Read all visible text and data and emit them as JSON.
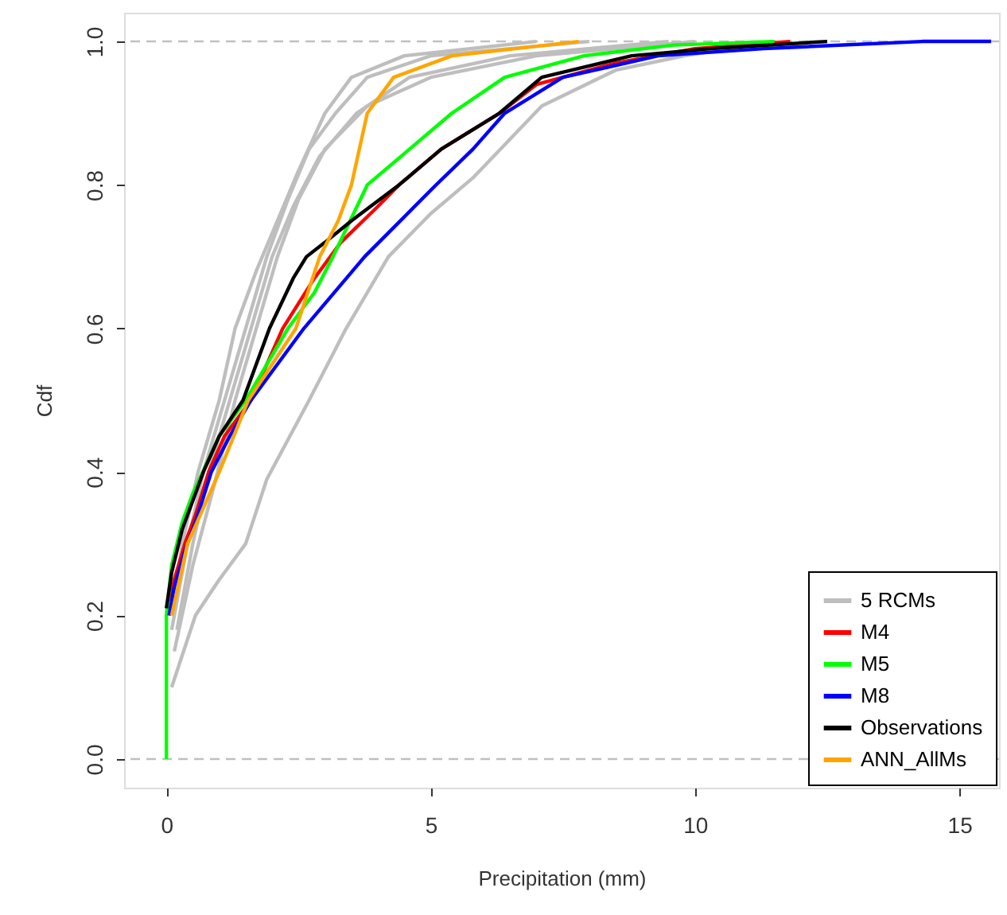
{
  "chart_data": {
    "type": "line",
    "xlabel": "Precipitation (mm)",
    "ylabel": "Cdf",
    "xlim": [
      -0.8,
      15.75
    ],
    "ylim": [
      -0.04,
      1.04
    ],
    "xticks": [
      0,
      5,
      10,
      15
    ],
    "yticks": [
      {
        "value": 0,
        "label": "0.0"
      },
      0.2,
      0.4,
      0.6,
      0.8,
      {
        "value": 1,
        "label": "1.0"
      }
    ],
    "grid": false,
    "legend": "bottom right",
    "line_style": "solid",
    "marker": "none",
    "ref_lines": [
      {
        "axis": "y",
        "value": 0,
        "color": "#c0c0c0",
        "line_style": "dashed"
      },
      {
        "axis": "y",
        "value": 1,
        "color": "#c0c0c0",
        "line_style": "dashed"
      }
    ],
    "series": [
      {
        "name": "5 RCMs",
        "color": "#bebebe",
        "x": [
          0.1,
          0.3,
          0.6,
          1.0,
          1.3,
          1.7,
          2.1,
          2.5,
          3.0,
          3.5,
          4.5,
          7.0
        ],
        "values": [
          0.2,
          0.3,
          0.4,
          0.5,
          0.6,
          0.68,
          0.75,
          0.82,
          0.9,
          0.95,
          0.98,
          1.0
        ]
      },
      {
        "color": "#bebebe",
        "x": [
          0.1,
          0.4,
          0.7,
          1.1,
          1.5,
          1.9,
          2.3,
          2.7,
          3.2,
          3.8,
          5.0,
          8.0
        ],
        "values": [
          0.18,
          0.3,
          0.4,
          0.5,
          0.6,
          0.7,
          0.78,
          0.85,
          0.9,
          0.95,
          0.98,
          1.0
        ]
      },
      {
        "color": "#bebebe",
        "x": [
          0.2,
          0.5,
          0.8,
          1.2,
          1.6,
          2.0,
          2.4,
          2.9,
          3.6,
          4.6,
          6.5,
          9.5
        ],
        "values": [
          0.18,
          0.3,
          0.4,
          0.5,
          0.6,
          0.7,
          0.77,
          0.84,
          0.9,
          0.95,
          0.98,
          1.0
        ]
      },
      {
        "color": "#bebebe",
        "x": [
          0.15,
          0.5,
          0.9,
          1.3,
          1.7,
          2.1,
          2.5,
          3.0,
          3.8,
          5.0,
          7.0,
          10.0
        ],
        "values": [
          0.15,
          0.27,
          0.38,
          0.5,
          0.6,
          0.7,
          0.78,
          0.85,
          0.91,
          0.95,
          0.98,
          1.0
        ]
      },
      {
        "color": "#bebebe",
        "x": [
          0.1,
          0.55,
          1.0,
          1.5,
          1.9,
          2.7,
          3.4,
          4.2,
          5.0,
          5.8,
          7.1,
          8.5,
          9.8,
          11.5
        ],
        "values": [
          0.1,
          0.2,
          0.25,
          0.3,
          0.39,
          0.5,
          0.6,
          0.7,
          0.76,
          0.81,
          0.91,
          0.96,
          0.98,
          1.0
        ]
      },
      {
        "name": "M4",
        "color": "#ff0000",
        "x": [
          0.05,
          0.15,
          0.35,
          0.55,
          0.8,
          1.1,
          1.6,
          2.2,
          2.8,
          3.3,
          4.0,
          4.4,
          5.2,
          6.3,
          7.0,
          8.5,
          10,
          11.8
        ],
        "values": [
          0.22,
          0.25,
          0.3,
          0.34,
          0.4,
          0.45,
          0.5,
          0.6,
          0.67,
          0.72,
          0.77,
          0.8,
          0.85,
          0.9,
          0.94,
          0.97,
          0.99,
          1.0
        ]
      },
      {
        "name": "M5",
        "color": "#00ff00",
        "x": [
          0,
          0,
          0.1,
          0.3,
          0.5,
          0.75,
          1.0,
          1.5,
          2.3,
          2.8,
          3.15,
          3.8,
          4.6,
          5.4,
          6.4,
          7.9,
          9.6,
          11.5
        ],
        "values": [
          0,
          0.2,
          0.27,
          0.33,
          0.37,
          0.41,
          0.45,
          0.5,
          0.6,
          0.65,
          0.7,
          0.8,
          0.85,
          0.9,
          0.95,
          0.98,
          0.995,
          1.0
        ]
      },
      {
        "name": "M8",
        "color": "#0000ff",
        "x": [
          0.05,
          0.15,
          0.35,
          0.55,
          0.85,
          1.2,
          1.6,
          2.6,
          3.75,
          5.1,
          5.8,
          6.4,
          7.5,
          9.3,
          11.3,
          14.3,
          15.6
        ],
        "values": [
          0.2,
          0.24,
          0.29,
          0.33,
          0.4,
          0.45,
          0.5,
          0.6,
          0.7,
          0.8,
          0.85,
          0.9,
          0.95,
          0.98,
          0.99,
          1.0,
          1.0
        ]
      },
      {
        "name": "Observations",
        "color": "#000000",
        "x": [
          0,
          0.1,
          0.3,
          0.5,
          0.7,
          1.0,
          1.45,
          1.95,
          2.4,
          2.65,
          3.0,
          3.5,
          4.4,
          5.2,
          6.3,
          7.1,
          8.8,
          10.3,
          12.5
        ],
        "values": [
          0.21,
          0.26,
          0.32,
          0.36,
          0.4,
          0.45,
          0.5,
          0.6,
          0.67,
          0.7,
          0.72,
          0.75,
          0.8,
          0.85,
          0.9,
          0.95,
          0.98,
          0.99,
          1.0
        ]
      },
      {
        "name": "ANN_AllMs",
        "color": "#ffa500",
        "x": [
          0.1,
          0.4,
          1.0,
          1.55,
          2.45,
          2.9,
          3.25,
          3.5,
          3.8,
          4.3,
          5.4,
          7.8
        ],
        "values": [
          0.2,
          0.3,
          0.4,
          0.5,
          0.6,
          0.7,
          0.75,
          0.8,
          0.9,
          0.95,
          0.98,
          1.0
        ]
      }
    ]
  }
}
